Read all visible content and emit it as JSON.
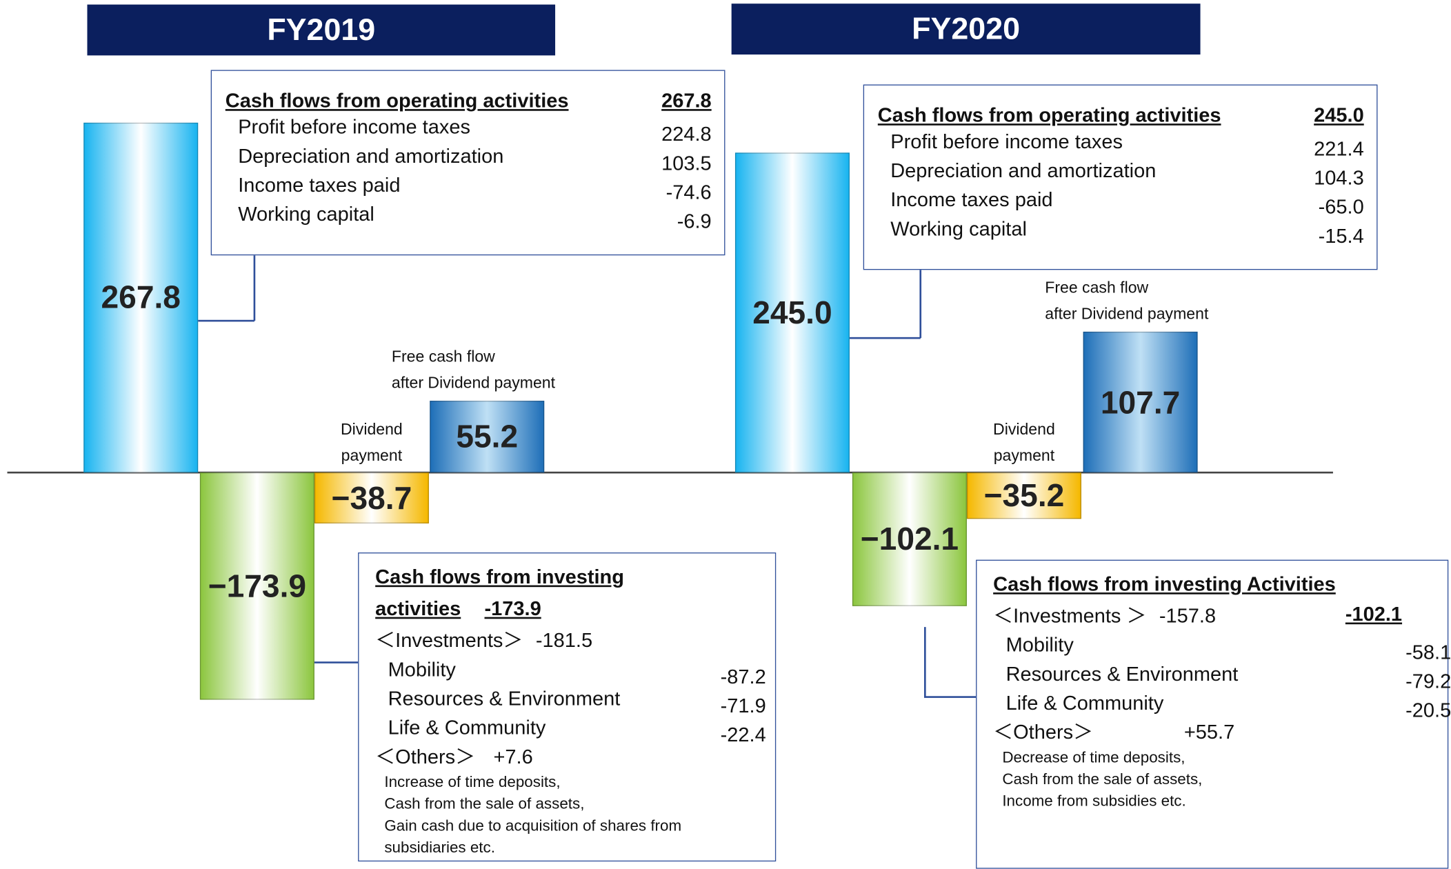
{
  "chart_data": [
    {
      "type": "waterfall",
      "title": "FY2019",
      "categories": [
        null,
        null,
        "Dividend\npayment",
        "Free cash flow\nafter Dividend payment"
      ],
      "values": [
        267.8,
        -173.9,
        -38.7,
        55.2
      ],
      "value_labels": [
        "267.8",
        "−173.9",
        "−38.7",
        "55.2"
      ],
      "colors": [
        "#19b4f0",
        "#8cc63f",
        "#f5b800",
        "#1f6fb8"
      ],
      "operating_box": {
        "title": "Cash flows from operating activities",
        "total": "267.8",
        "items": [
          {
            "label": "Profit before income taxes",
            "value": "224.8"
          },
          {
            "label": "Depreciation and amortization",
            "value": "103.5"
          },
          {
            "label": "Income taxes paid",
            "value": "-74.6"
          },
          {
            "label": "Working  capital",
            "value": "-6.9"
          }
        ]
      },
      "investing_box": {
        "title": "Cash flows from investing activities",
        "total": "-173.9",
        "investments": {
          "label": "＜Investments＞",
          "value": "-181.5"
        },
        "items": [
          {
            "label": "Mobility",
            "value": "-87.2"
          },
          {
            "label": "Resources & Environment",
            "value": "-71.9"
          },
          {
            "label": "Life & Community",
            "value": "-22.4"
          }
        ],
        "others": {
          "label": "＜Others＞",
          "value": "+7.6"
        },
        "notes": [
          "Increase of time deposits,",
          "Cash from the sale of assets,",
          "Gain cash due to acquisition of shares from subsidiaries etc."
        ]
      }
    },
    {
      "type": "waterfall",
      "title": "FY2020",
      "categories": [
        null,
        null,
        "Dividend\npayment",
        "Free cash flow\nafter Dividend payment"
      ],
      "values": [
        245.0,
        -102.1,
        -35.2,
        107.7
      ],
      "value_labels": [
        "245.0",
        "−102.1",
        "−35.2",
        "107.7"
      ],
      "colors": [
        "#19b4f0",
        "#8cc63f",
        "#f5b800",
        "#1f6fb8"
      ],
      "operating_box": {
        "title": "Cash flows from operating activities",
        "total": "245.0",
        "items": [
          {
            "label": "Profit before income taxes",
            "value": "221.4"
          },
          {
            "label": "Depreciation and amortization",
            "value": "104.3"
          },
          {
            "label": "Income taxes paid",
            "value": "-65.0"
          },
          {
            "label": "Working  capital",
            "value": "-15.4"
          }
        ]
      },
      "investing_box": {
        "title": "Cash flows from investing Activities",
        "total": "-102.1",
        "investments": {
          "label": "＜Investments ＞",
          "value": "-157.8"
        },
        "items": [
          {
            "label": "Mobility",
            "value": "-58.1"
          },
          {
            "label": "Resources & Environment",
            "value": "-79.2"
          },
          {
            "label": "Life & Community",
            "value": "-20.5"
          }
        ],
        "others": {
          "label": "＜Others＞",
          "value": "+55.7"
        },
        "notes": [
          "Decrease of time deposits,",
          "Cash from the sale of assets,",
          "Income from subsidies etc."
        ]
      }
    }
  ]
}
